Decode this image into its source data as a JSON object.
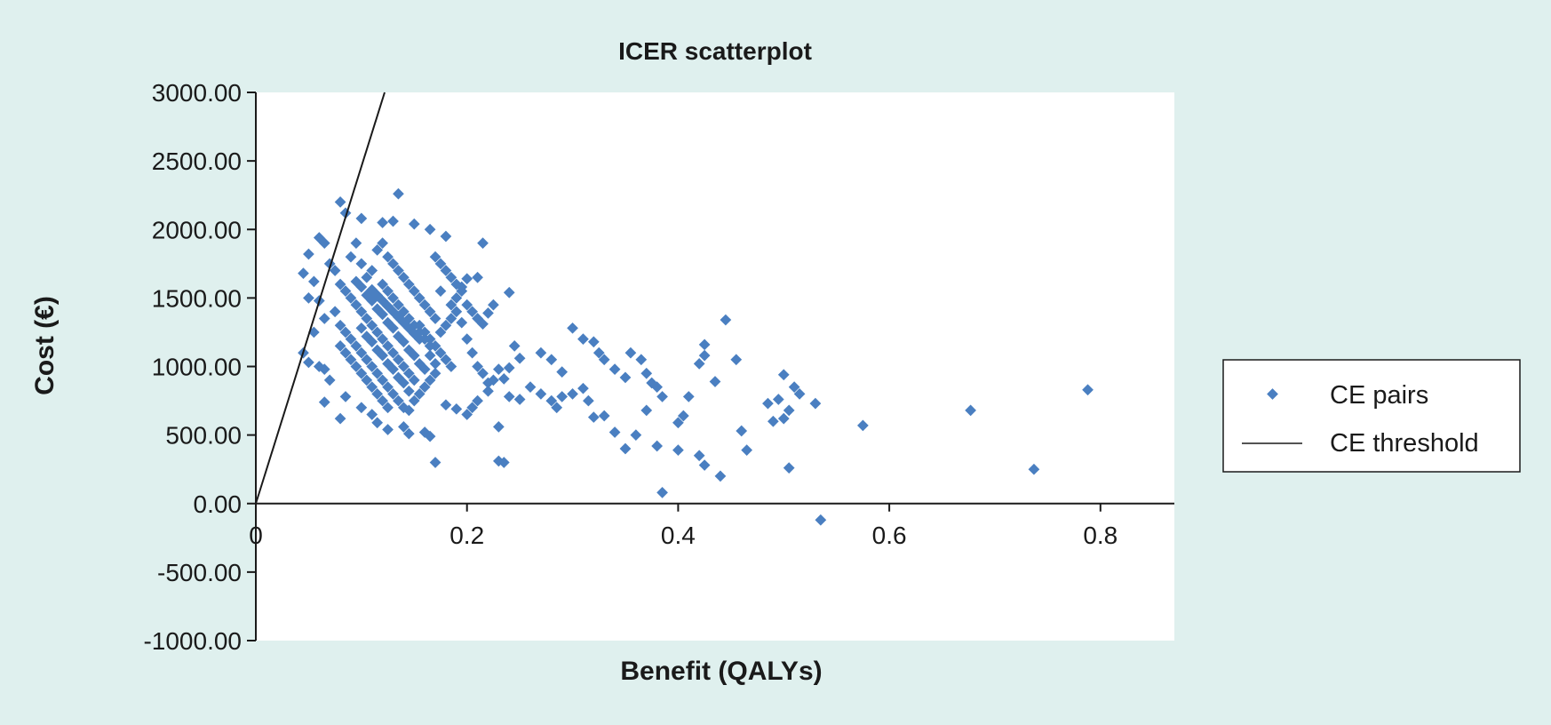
{
  "chart_data": {
    "type": "scatter",
    "title": "ICER scatterplot",
    "xlabel": "Benefit (QALYs)",
    "ylabel": "Cost (€)",
    "xlim": [
      0,
      0.87
    ],
    "ylim": [
      -1000,
      3000
    ],
    "x_ticks": [
      0,
      0.2,
      0.4,
      0.6,
      0.8
    ],
    "x_tick_labels": [
      "0",
      "0.2",
      "0.4",
      "0.6",
      "0.8"
    ],
    "y_ticks": [
      3000,
      2500,
      2000,
      1500,
      1000,
      500,
      0,
      -500,
      -1000
    ],
    "y_tick_labels": [
      "3000.00",
      "2500.00",
      "2000.00",
      "1500.00",
      "1000.00",
      "500.00",
      "0.00",
      "-500.00",
      "-1000.00"
    ],
    "grid": false,
    "legend_position": "right",
    "colors": {
      "points": "#4a7fc1",
      "threshold": "#1a1a1a",
      "plot_bg": "#ffffff",
      "page_bg": "#dff0ee"
    },
    "series": [
      {
        "name": "CE pairs",
        "kind": "points",
        "points": [
          [
            0.08,
            2200
          ],
          [
            0.085,
            2120
          ],
          [
            0.1,
            2080
          ],
          [
            0.12,
            2050
          ],
          [
            0.13,
            2060
          ],
          [
            0.135,
            2260
          ],
          [
            0.15,
            2040
          ],
          [
            0.165,
            2000
          ],
          [
            0.18,
            1950
          ],
          [
            0.215,
            1900
          ],
          [
            0.045,
            1680
          ],
          [
            0.05,
            1820
          ],
          [
            0.06,
            1940
          ],
          [
            0.065,
            1900
          ],
          [
            0.07,
            1750
          ],
          [
            0.055,
            1620
          ],
          [
            0.06,
            1480
          ],
          [
            0.05,
            1500
          ],
          [
            0.065,
            1350
          ],
          [
            0.055,
            1250
          ],
          [
            0.045,
            1100
          ],
          [
            0.05,
            1030
          ],
          [
            0.06,
            1000
          ],
          [
            0.065,
            980
          ],
          [
            0.07,
            900
          ],
          [
            0.065,
            740
          ],
          [
            0.08,
            620
          ],
          [
            0.085,
            780
          ],
          [
            0.1,
            700
          ],
          [
            0.11,
            650
          ],
          [
            0.115,
            590
          ],
          [
            0.125,
            540
          ],
          [
            0.14,
            560
          ],
          [
            0.145,
            510
          ],
          [
            0.16,
            520
          ],
          [
            0.165,
            490
          ],
          [
            0.17,
            300
          ],
          [
            0.18,
            720
          ],
          [
            0.19,
            690
          ],
          [
            0.2,
            650
          ],
          [
            0.205,
            700
          ],
          [
            0.21,
            750
          ],
          [
            0.22,
            820
          ],
          [
            0.225,
            900
          ],
          [
            0.23,
            560
          ],
          [
            0.23,
            310
          ],
          [
            0.235,
            300
          ],
          [
            0.24,
            780
          ],
          [
            0.25,
            760
          ],
          [
            0.26,
            850
          ],
          [
            0.25,
            1060
          ],
          [
            0.245,
            1150
          ],
          [
            0.24,
            1540
          ],
          [
            0.225,
            1450
          ],
          [
            0.22,
            1390
          ],
          [
            0.215,
            1310
          ],
          [
            0.21,
            1650
          ],
          [
            0.2,
            1640
          ],
          [
            0.195,
            1580
          ],
          [
            0.19,
            1500
          ],
          [
            0.185,
            1450
          ],
          [
            0.195,
            1320
          ],
          [
            0.2,
            1200
          ],
          [
            0.205,
            1100
          ],
          [
            0.21,
            1000
          ],
          [
            0.215,
            950
          ],
          [
            0.22,
            880
          ],
          [
            0.23,
            980
          ],
          [
            0.235,
            910
          ],
          [
            0.24,
            990
          ],
          [
            0.27,
            1100
          ],
          [
            0.28,
            1050
          ],
          [
            0.29,
            960
          ],
          [
            0.3,
            1280
          ],
          [
            0.31,
            1200
          ],
          [
            0.32,
            1180
          ],
          [
            0.325,
            1100
          ],
          [
            0.33,
            1050
          ],
          [
            0.34,
            980
          ],
          [
            0.35,
            920
          ],
          [
            0.355,
            1100
          ],
          [
            0.365,
            1050
          ],
          [
            0.37,
            950
          ],
          [
            0.375,
            880
          ],
          [
            0.38,
            850
          ],
          [
            0.385,
            780
          ],
          [
            0.27,
            800
          ],
          [
            0.28,
            750
          ],
          [
            0.285,
            700
          ],
          [
            0.29,
            780
          ],
          [
            0.3,
            800
          ],
          [
            0.31,
            840
          ],
          [
            0.315,
            750
          ],
          [
            0.32,
            630
          ],
          [
            0.33,
            640
          ],
          [
            0.34,
            520
          ],
          [
            0.35,
            400
          ],
          [
            0.36,
            500
          ],
          [
            0.37,
            680
          ],
          [
            0.38,
            420
          ],
          [
            0.385,
            80
          ],
          [
            0.4,
            590
          ],
          [
            0.405,
            640
          ],
          [
            0.41,
            780
          ],
          [
            0.4,
            390
          ],
          [
            0.42,
            1020
          ],
          [
            0.425,
            1160
          ],
          [
            0.425,
            1080
          ],
          [
            0.445,
            1340
          ],
          [
            0.435,
            890
          ],
          [
            0.42,
            350
          ],
          [
            0.425,
            280
          ],
          [
            0.44,
            200
          ],
          [
            0.455,
            1050
          ],
          [
            0.46,
            530
          ],
          [
            0.465,
            390
          ],
          [
            0.485,
            730
          ],
          [
            0.49,
            600
          ],
          [
            0.495,
            760
          ],
          [
            0.5,
            620
          ],
          [
            0.5,
            940
          ],
          [
            0.505,
            680
          ],
          [
            0.51,
            850
          ],
          [
            0.515,
            800
          ],
          [
            0.505,
            260
          ],
          [
            0.53,
            730
          ],
          [
            0.535,
            -120
          ],
          [
            0.575,
            570
          ],
          [
            0.677,
            680
          ],
          [
            0.737,
            250
          ],
          [
            0.788,
            830
          ],
          [
            0.075,
            1700
          ],
          [
            0.08,
            1600
          ],
          [
            0.085,
            1550
          ],
          [
            0.09,
            1800
          ],
          [
            0.095,
            1900
          ],
          [
            0.1,
            1750
          ],
          [
            0.105,
            1650
          ],
          [
            0.11,
            1700
          ],
          [
            0.115,
            1850
          ],
          [
            0.12,
            1900
          ],
          [
            0.125,
            1800
          ],
          [
            0.13,
            1750
          ],
          [
            0.135,
            1700
          ],
          [
            0.14,
            1650
          ],
          [
            0.145,
            1600
          ],
          [
            0.15,
            1550
          ],
          [
            0.155,
            1500
          ],
          [
            0.16,
            1450
          ],
          [
            0.165,
            1400
          ],
          [
            0.17,
            1350
          ],
          [
            0.075,
            1400
          ],
          [
            0.08,
            1300
          ],
          [
            0.085,
            1250
          ],
          [
            0.09,
            1200
          ],
          [
            0.095,
            1150
          ],
          [
            0.1,
            1100
          ],
          [
            0.105,
            1050
          ],
          [
            0.11,
            1000
          ],
          [
            0.115,
            950
          ],
          [
            0.12,
            900
          ],
          [
            0.125,
            850
          ],
          [
            0.13,
            800
          ],
          [
            0.135,
            750
          ],
          [
            0.14,
            700
          ],
          [
            0.145,
            680
          ],
          [
            0.15,
            750
          ],
          [
            0.155,
            800
          ],
          [
            0.16,
            850
          ],
          [
            0.165,
            900
          ],
          [
            0.17,
            950
          ],
          [
            0.09,
            1500
          ],
          [
            0.095,
            1450
          ],
          [
            0.1,
            1400
          ],
          [
            0.105,
            1350
          ],
          [
            0.11,
            1300
          ],
          [
            0.115,
            1250
          ],
          [
            0.12,
            1200
          ],
          [
            0.125,
            1150
          ],
          [
            0.13,
            1100
          ],
          [
            0.135,
            1050
          ],
          [
            0.14,
            1000
          ],
          [
            0.145,
            950
          ],
          [
            0.15,
            900
          ],
          [
            0.155,
            1300
          ],
          [
            0.16,
            1250
          ],
          [
            0.165,
            1200
          ],
          [
            0.17,
            1150
          ],
          [
            0.175,
            1100
          ],
          [
            0.18,
            1050
          ],
          [
            0.185,
            1000
          ],
          [
            0.095,
            1620
          ],
          [
            0.1,
            1580
          ],
          [
            0.105,
            1520
          ],
          [
            0.11,
            1480
          ],
          [
            0.115,
            1420
          ],
          [
            0.12,
            1380
          ],
          [
            0.125,
            1320
          ],
          [
            0.13,
            1280
          ],
          [
            0.135,
            1220
          ],
          [
            0.14,
            1180
          ],
          [
            0.145,
            1120
          ],
          [
            0.15,
            1080
          ],
          [
            0.155,
            1020
          ],
          [
            0.16,
            980
          ],
          [
            0.165,
            1080
          ],
          [
            0.17,
            1020
          ],
          [
            0.175,
            1250
          ],
          [
            0.18,
            1300
          ],
          [
            0.185,
            1350
          ],
          [
            0.19,
            1400
          ],
          [
            0.1,
            1280
          ],
          [
            0.105,
            1220
          ],
          [
            0.11,
            1180
          ],
          [
            0.115,
            1120
          ],
          [
            0.12,
            1080
          ],
          [
            0.125,
            1020
          ],
          [
            0.13,
            980
          ],
          [
            0.135,
            920
          ],
          [
            0.14,
            880
          ],
          [
            0.145,
            820
          ],
          [
            0.12,
            1600
          ],
          [
            0.125,
            1550
          ],
          [
            0.13,
            1500
          ],
          [
            0.135,
            1450
          ],
          [
            0.14,
            1400
          ],
          [
            0.145,
            1350
          ],
          [
            0.15,
            1300
          ],
          [
            0.155,
            1250
          ],
          [
            0.16,
            1200
          ],
          [
            0.165,
            1150
          ],
          [
            0.11,
            1560
          ],
          [
            0.115,
            1520
          ],
          [
            0.12,
            1480
          ],
          [
            0.125,
            1440
          ],
          [
            0.13,
            1400
          ],
          [
            0.135,
            1360
          ],
          [
            0.14,
            1320
          ],
          [
            0.145,
            1280
          ],
          [
            0.15,
            1240
          ],
          [
            0.155,
            1200
          ],
          [
            0.08,
            1150
          ],
          [
            0.085,
            1100
          ],
          [
            0.09,
            1050
          ],
          [
            0.095,
            1000
          ],
          [
            0.1,
            950
          ],
          [
            0.105,
            900
          ],
          [
            0.11,
            850
          ],
          [
            0.115,
            800
          ],
          [
            0.12,
            750
          ],
          [
            0.125,
            700
          ],
          [
            0.17,
            1800
          ],
          [
            0.175,
            1750
          ],
          [
            0.18,
            1700
          ],
          [
            0.185,
            1650
          ],
          [
            0.19,
            1600
          ],
          [
            0.195,
            1550
          ],
          [
            0.2,
            1450
          ],
          [
            0.205,
            1400
          ],
          [
            0.21,
            1350
          ],
          [
            0.175,
            1550
          ]
        ]
      },
      {
        "name": "CE threshold",
        "kind": "line",
        "points": [
          [
            0,
            0
          ],
          [
            0.122,
            3000
          ]
        ]
      }
    ]
  }
}
